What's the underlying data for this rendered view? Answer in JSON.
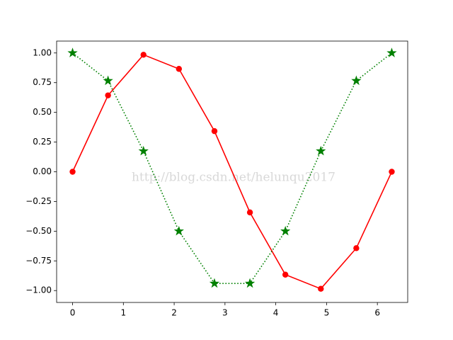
{
  "chart_data": {
    "type": "line",
    "watermark": "http://blog.csdn.net/helunqu2017",
    "x": [
      0,
      0.698,
      1.396,
      2.094,
      2.793,
      3.491,
      4.189,
      4.887,
      5.585,
      6.283
    ],
    "series": [
      {
        "color": "#ff0000",
        "linestyle": "solid",
        "marker": "circle",
        "values": [
          0,
          0.643,
          0.985,
          0.866,
          0.342,
          -0.342,
          -0.866,
          -0.985,
          -0.643,
          0
        ]
      },
      {
        "color": "#008000",
        "linestyle": "dotted",
        "marker": "star",
        "values": [
          1,
          0.766,
          0.174,
          -0.5,
          -0.94,
          -0.94,
          -0.5,
          0.174,
          0.766,
          1
        ]
      }
    ],
    "xlim": [
      -0.314,
      6.597
    ],
    "xticks": [
      0,
      1,
      2,
      3,
      4,
      5,
      6
    ],
    "ylim": [
      -1.1,
      1.1
    ],
    "yticks": [
      {
        "value": -1,
        "label": "−1.00"
      },
      {
        "value": -0.75,
        "label": "−0.75"
      },
      {
        "value": -0.5,
        "label": "−0.50"
      },
      {
        "value": -0.25,
        "label": "−0.25"
      },
      {
        "value": 0,
        "label": "0.00"
      },
      {
        "value": 0.25,
        "label": "0.25"
      },
      {
        "value": 0.5,
        "label": "0.50"
      },
      {
        "value": 0.75,
        "label": "0.75"
      },
      {
        "value": 1,
        "label": "1.00"
      }
    ],
    "grid": false
  }
}
